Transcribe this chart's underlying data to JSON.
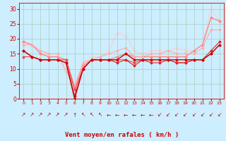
{
  "x": [
    0,
    1,
    2,
    3,
    4,
    5,
    6,
    7,
    8,
    9,
    10,
    11,
    12,
    13,
    14,
    15,
    16,
    17,
    18,
    19,
    20,
    21,
    22,
    23
  ],
  "series": [
    {
      "y": [
        16,
        14,
        13,
        13,
        13,
        12,
        0,
        10,
        13,
        13,
        13,
        13,
        15,
        13,
        13,
        13,
        13,
        13,
        13,
        13,
        13,
        13,
        15,
        18
      ],
      "color": "#cc0000",
      "lw": 1.0,
      "marker": "D",
      "ms": 1.5,
      "zorder": 5
    },
    {
      "y": [
        16,
        14,
        13,
        13,
        13,
        12,
        1,
        10,
        13,
        13,
        13,
        12,
        13,
        11,
        13,
        12,
        12,
        13,
        12,
        12,
        13,
        13,
        16,
        19
      ],
      "color": "#dd2222",
      "lw": 0.8,
      "marker": "D",
      "ms": 1.5,
      "zorder": 4
    },
    {
      "y": [
        14,
        14,
        13,
        13,
        13,
        13,
        3,
        10,
        13,
        13,
        13,
        13,
        13,
        12,
        13,
        13,
        13,
        13,
        12,
        12,
        13,
        13,
        15,
        18
      ],
      "color": "#ee4444",
      "lw": 0.8,
      "marker": "D",
      "ms": 1.5,
      "zorder": 3
    },
    {
      "y": [
        19,
        18,
        15,
        14,
        14,
        13,
        4,
        11,
        13,
        13,
        13,
        14,
        15,
        14,
        14,
        14,
        14,
        14,
        14,
        14,
        16,
        18,
        27,
        26
      ],
      "color": "#ff8888",
      "lw": 1.0,
      "marker": "o",
      "ms": 1.8,
      "zorder": 2
    },
    {
      "y": [
        18,
        18,
        16,
        15,
        15,
        9,
        4,
        12,
        13,
        14,
        15,
        16,
        17,
        14,
        14,
        15,
        15,
        16,
        15,
        15,
        15,
        17,
        23,
        23
      ],
      "color": "#ffaaaa",
      "lw": 0.8,
      "marker": "o",
      "ms": 1.5,
      "zorder": 2
    },
    {
      "y": [
        19,
        18,
        16,
        15,
        15,
        10,
        4,
        12,
        14,
        14,
        16,
        22,
        21,
        16,
        15,
        16,
        16,
        16,
        17,
        16,
        16,
        18,
        30,
        26
      ],
      "color": "#ffcccc",
      "lw": 0.8,
      "marker": "^",
      "ms": 1.8,
      "zorder": 1
    }
  ],
  "wind_chars": [
    "↗",
    "↗",
    "↗",
    "↗",
    "↗",
    "↗",
    "↑",
    "↖",
    "↖",
    "↖",
    "←",
    "←",
    "←",
    "←",
    "←",
    "←",
    "↙",
    "↙",
    "↙",
    "↙",
    "↙",
    "↙",
    "↙",
    "↙"
  ],
  "xlabel": "Vent moyen/en rafales ( km/h )",
  "ylim": [
    0,
    32
  ],
  "yticks": [
    0,
    5,
    10,
    15,
    20,
    25,
    30
  ],
  "bg_color": "#cceeff",
  "grid_color": "#aaccbb",
  "text_color": "#cc0000",
  "xlabel_color": "#cc0000",
  "tick_color": "#cc0000"
}
